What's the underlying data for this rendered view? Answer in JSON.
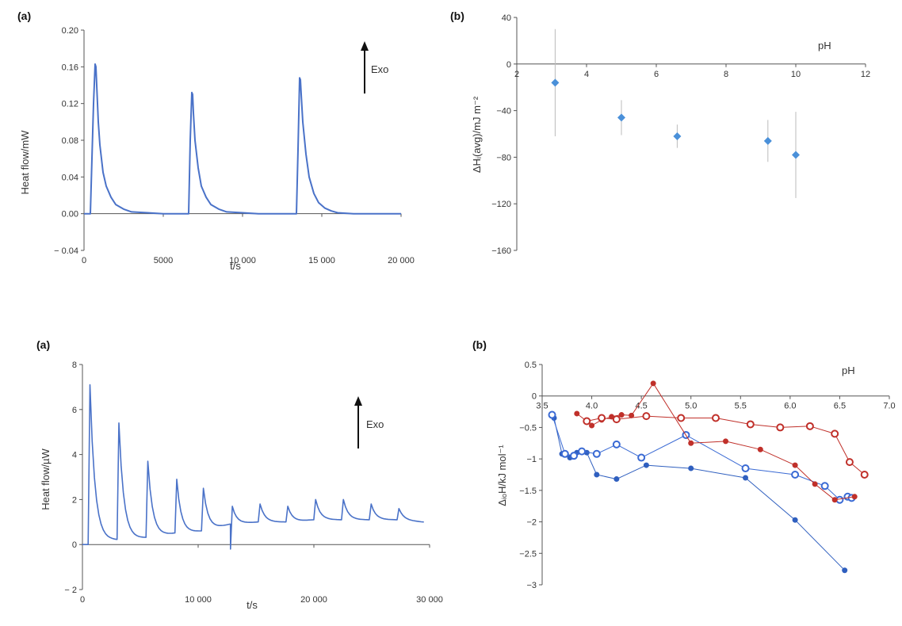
{
  "chart_data": [
    {
      "id": "top_a",
      "panel_label": "(a)",
      "type": "line",
      "xlabel": "t/s",
      "ylabel": "Heat flow/mW",
      "xlim": [
        0,
        20000
      ],
      "ylim": [
        -0.04,
        0.2
      ],
      "xticks": [
        0,
        5000,
        10000,
        15000,
        20000
      ],
      "xtick_labels": [
        "0",
        "5000",
        "10 000",
        "15 000",
        "20 000"
      ],
      "yticks": [
        -0.04,
        0,
        0.04,
        0.08,
        0.12,
        0.16,
        0.2
      ],
      "ytick_labels": [
        "− 0.04",
        "0.00",
        "0.04",
        "0.08",
        "0.12",
        "0.16",
        "0.20"
      ],
      "annotation": "Exo",
      "color": "#4a72c8",
      "series": [
        {
          "x": [
            0,
            400,
            600,
            700,
            750,
            800,
            900,
            1000,
            1200,
            1400,
            1700,
            2000,
            2500,
            3000,
            4000,
            5000,
            6000,
            6600,
            6700,
            6800,
            6850,
            6900,
            7000,
            7200,
            7400,
            7700,
            8000,
            8500,
            9000,
            10000,
            11000,
            12000,
            13000,
            13400,
            13500,
            13600,
            13650,
            13700,
            13800,
            14000,
            14200,
            14500,
            14800,
            15200,
            15600,
            16000,
            17000,
            18000,
            19000,
            20000
          ],
          "y": [
            0,
            0,
            0.12,
            0.163,
            0.16,
            0.14,
            0.1,
            0.075,
            0.045,
            0.03,
            0.018,
            0.01,
            0.005,
            0.002,
            0.001,
            0,
            0,
            0,
            0.08,
            0.132,
            0.13,
            0.11,
            0.08,
            0.05,
            0.03,
            0.018,
            0.01,
            0.005,
            0.002,
            0.001,
            0,
            0,
            0,
            0,
            0.07,
            0.148,
            0.146,
            0.13,
            0.1,
            0.065,
            0.04,
            0.022,
            0.012,
            0.006,
            0.003,
            0.001,
            0,
            0,
            0,
            0
          ]
        }
      ]
    },
    {
      "id": "top_b",
      "panel_label": "(b)",
      "type": "scatter",
      "xlabel": "pH",
      "ylabel": "ΔHᵢ(avg)/mJ m⁻²",
      "xlim": [
        2,
        12
      ],
      "ylim": [
        -160,
        40
      ],
      "xticks": [
        2,
        4,
        6,
        8,
        10,
        12
      ],
      "yticks": [
        -160,
        -120,
        -80,
        -40,
        0,
        40
      ],
      "ytick_labels": [
        "−160",
        "−120",
        "−80",
        "−40",
        "0",
        "40"
      ],
      "color": "#4a90d9",
      "series": [
        {
          "x": [
            3.1,
            5.0,
            6.6,
            9.2,
            10.0
          ],
          "y": [
            -16,
            -46,
            -62,
            -66,
            -78
          ],
          "err": [
            46,
            15,
            10,
            18,
            37
          ]
        }
      ]
    },
    {
      "id": "bottom_a",
      "panel_label": "(a)",
      "type": "line",
      "xlabel": "t/s",
      "ylabel": "Heat flow/µW",
      "xlim": [
        0,
        30000
      ],
      "ylim": [
        -2,
        8
      ],
      "xticks": [
        0,
        10000,
        20000,
        30000
      ],
      "xtick_labels": [
        "0",
        "10 000",
        "20 000",
        "30 000"
      ],
      "yticks": [
        -2,
        0,
        2,
        4,
        6,
        8
      ],
      "ytick_labels": [
        "− 2",
        "0",
        "2",
        "4",
        "6",
        "8"
      ],
      "annotation": "Exo",
      "color": "#4a72c8",
      "injections": {
        "times": [
          500,
          3000,
          5500,
          8000,
          10300,
          12800,
          15200,
          17600,
          20000,
          22400,
          24800,
          27200
        ],
        "peaks": [
          7.1,
          5.4,
          3.7,
          2.9,
          2.5,
          1.7,
          1.8,
          1.7,
          2.0,
          2.0,
          1.8,
          1.6
        ],
        "baselines": [
          0.2,
          0.2,
          0.3,
          0.5,
          0.6,
          0.9,
          1.0,
          1.0,
          1.1,
          1.1,
          1.1,
          1.1
        ],
        "final": 1.0,
        "dip": -0.2
      }
    },
    {
      "id": "bottom_b",
      "panel_label": "(b)",
      "type": "line",
      "xlabel": "pH",
      "ylabel": "ΔᵢₒH/kJ mol⁻¹",
      "xlim": [
        3.5,
        7.0
      ],
      "ylim": [
        -3,
        0.5
      ],
      "xticks": [
        3.5,
        4.0,
        4.5,
        5.0,
        5.5,
        6.0,
        6.5,
        7.0
      ],
      "xtick_labels": [
        "3.5",
        "4.0",
        "4.5",
        "5.0",
        "5.5",
        "6.0",
        "6.5",
        "7.0"
      ],
      "yticks": [
        -3,
        -2.5,
        -2,
        -1.5,
        -1,
        -0.5,
        0,
        0.5
      ],
      "ytick_labels": [
        "−3",
        "−2.5",
        "−2",
        "−1.5",
        "−1",
        "−0.5",
        "0",
        "0.5"
      ],
      "series": [
        {
          "color": "#2f5fbf",
          "marker": "filled",
          "x": [
            3.62,
            3.7,
            3.78,
            3.85,
            3.95,
            4.05,
            4.25,
            4.55,
            5.0,
            5.55,
            6.05,
            6.55
          ],
          "y": [
            -0.35,
            -0.92,
            -0.98,
            -0.9,
            -0.9,
            -1.25,
            -1.32,
            -1.1,
            -1.15,
            -1.3,
            -1.97,
            -2.77
          ]
        },
        {
          "color": "#3a6ad4",
          "marker": "open",
          "x": [
            3.6,
            3.73,
            3.82,
            3.9,
            4.05,
            4.25,
            4.5,
            4.95,
            5.55,
            6.05,
            6.35,
            6.5,
            6.58,
            6.62
          ],
          "y": [
            -0.3,
            -0.92,
            -0.95,
            -0.88,
            -0.92,
            -0.77,
            -0.98,
            -0.62,
            -1.15,
            -1.25,
            -1.43,
            -1.65,
            -1.6,
            -1.62
          ]
        },
        {
          "color": "#c0302a",
          "marker": "filled",
          "x": [
            3.85,
            3.95,
            4.0,
            4.1,
            4.2,
            4.3,
            4.4,
            4.62,
            5.0,
            5.35,
            5.7,
            6.05,
            6.25,
            6.45,
            6.65
          ],
          "y": [
            -0.28,
            -0.4,
            -0.47,
            -0.38,
            -0.33,
            -0.3,
            -0.31,
            0.2,
            -0.75,
            -0.72,
            -0.85,
            -1.1,
            -1.4,
            -1.65,
            -1.6
          ]
        },
        {
          "color": "#c0302a",
          "marker": "open",
          "x": [
            3.95,
            4.1,
            4.25,
            4.55,
            4.9,
            5.25,
            5.6,
            5.9,
            6.2,
            6.45,
            6.6,
            6.75
          ],
          "y": [
            -0.4,
            -0.35,
            -0.37,
            -0.32,
            -0.35,
            -0.35,
            -0.45,
            -0.5,
            -0.48,
            -0.6,
            -1.05,
            -1.25
          ]
        }
      ]
    }
  ]
}
